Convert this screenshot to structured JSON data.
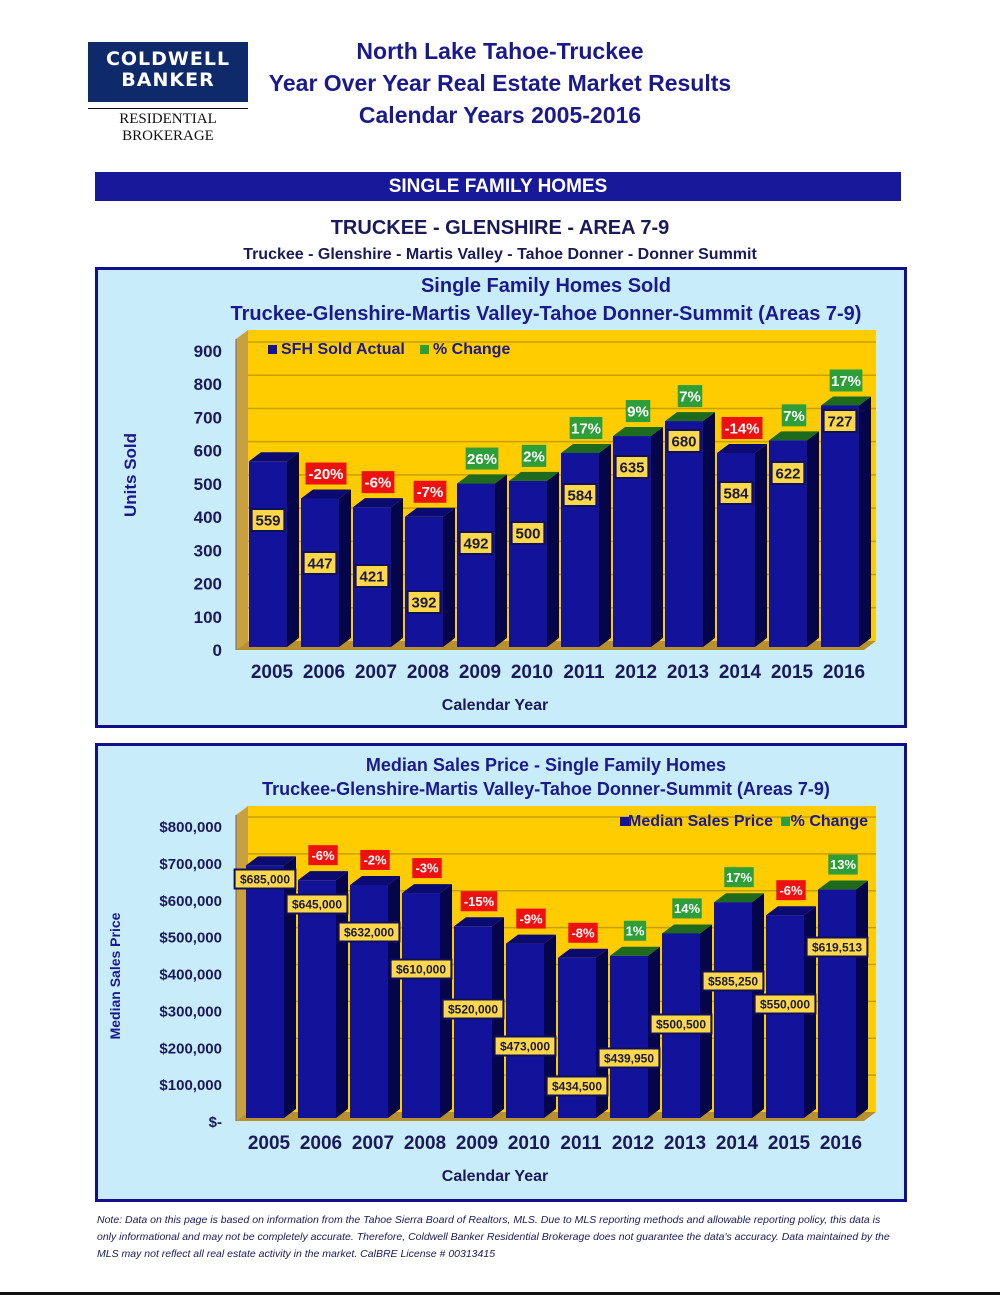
{
  "logo": {
    "line1": "COLDWELL",
    "line2": "BANKER",
    "sub": "RESIDENTIAL BROKERAGE"
  },
  "header": {
    "title1": "North Lake Tahoe-Truckee",
    "title2": "Year Over Year Real Estate Market Results",
    "title3": "Calendar Years 2005-2016"
  },
  "banner": "SINGLE FAMILY HOMES",
  "area": {
    "title": "TRUCKEE - GLENSHIRE - AREA 7-9",
    "subtitle": "Truckee - Glenshire - Martis Valley - Tahoe Donner - Donner Summit"
  },
  "colors": {
    "bar": "#12129a",
    "wall": "#ffcc00",
    "up": "#2e9e3a",
    "down": "#ee1111",
    "navy": "#10108a"
  },
  "chart_data": [
    {
      "type": "bar",
      "title": "Single Family Homes Sold",
      "subtitle": "Truckee-Glenshire-Martis Valley-Tahoe Donner-Summit (Areas 7-9)",
      "xlabel": "Calendar Year",
      "ylabel": "Units Sold",
      "ylim": [
        0,
        900
      ],
      "yticks": [
        "0",
        "100",
        "200",
        "300",
        "400",
        "500",
        "600",
        "700",
        "800",
        "900"
      ],
      "legend": [
        "SFH Sold Actual",
        "% Change"
      ],
      "legend_position": "top-left",
      "categories": [
        "2005",
        "2006",
        "2007",
        "2008",
        "2009",
        "2010",
        "2011",
        "2012",
        "2013",
        "2014",
        "2015",
        "2016"
      ],
      "values": [
        559,
        447,
        421,
        392,
        492,
        500,
        584,
        635,
        680,
        584,
        622,
        727
      ],
      "value_labels": [
        "559",
        "447",
        "421",
        "392",
        "492",
        "500",
        "584",
        "635",
        "680",
        "584",
        "622",
        "727"
      ],
      "pct_change": [
        null,
        "-20%",
        "-6%",
        "-7%",
        "26%",
        "2%",
        "17%",
        "9%",
        "7%",
        "-14%",
        "7%",
        "17%"
      ]
    },
    {
      "type": "bar",
      "title": "Median Sales Price - Single Family Homes",
      "subtitle": "Truckee-Glenshire-Martis Valley-Tahoe Donner-Summit (Areas 7-9)",
      "xlabel": "Calendar Year",
      "ylabel": "Median Sales Price",
      "ylim": [
        0,
        800000
      ],
      "yticks": [
        "$-",
        "$100,000",
        "$200,000",
        "$300,000",
        "$400,000",
        "$500,000",
        "$600,000",
        "$700,000",
        "$800,000"
      ],
      "legend": [
        "Median Sales Price",
        "% Change"
      ],
      "legend_position": "top-right",
      "categories": [
        "2005",
        "2006",
        "2007",
        "2008",
        "2009",
        "2010",
        "2011",
        "2012",
        "2013",
        "2014",
        "2015",
        "2016"
      ],
      "values": [
        685000,
        645000,
        632000,
        610000,
        520000,
        473000,
        434500,
        439950,
        500500,
        585250,
        550000,
        619513
      ],
      "value_labels": [
        "$685,000",
        "$645,000",
        "$632,000",
        "$610,000",
        "$520,000",
        "$473,000",
        "$434,500",
        "$439,950",
        "$500,500",
        "$585,250",
        "$550,000",
        "$619,513"
      ],
      "pct_change": [
        null,
        "-6%",
        "-2%",
        "-3%",
        "-15%",
        "-9%",
        "-8%",
        "1%",
        "14%",
        "17%",
        "-6%",
        "13%"
      ]
    }
  ],
  "note": "Note: Data on this page is based on information from the Tahoe Sierra Board of Realtors, MLS.  Due to MLS reporting methods and allowable reporting policy, this data is only informational and may not be completely accurate.  Therefore, Coldwell Banker Residential Brokerage does not guarantee the data's accuracy.  Data maintained by the MLS may not reflect all real estate activity in the market.  CalBRE License # 00313415"
}
